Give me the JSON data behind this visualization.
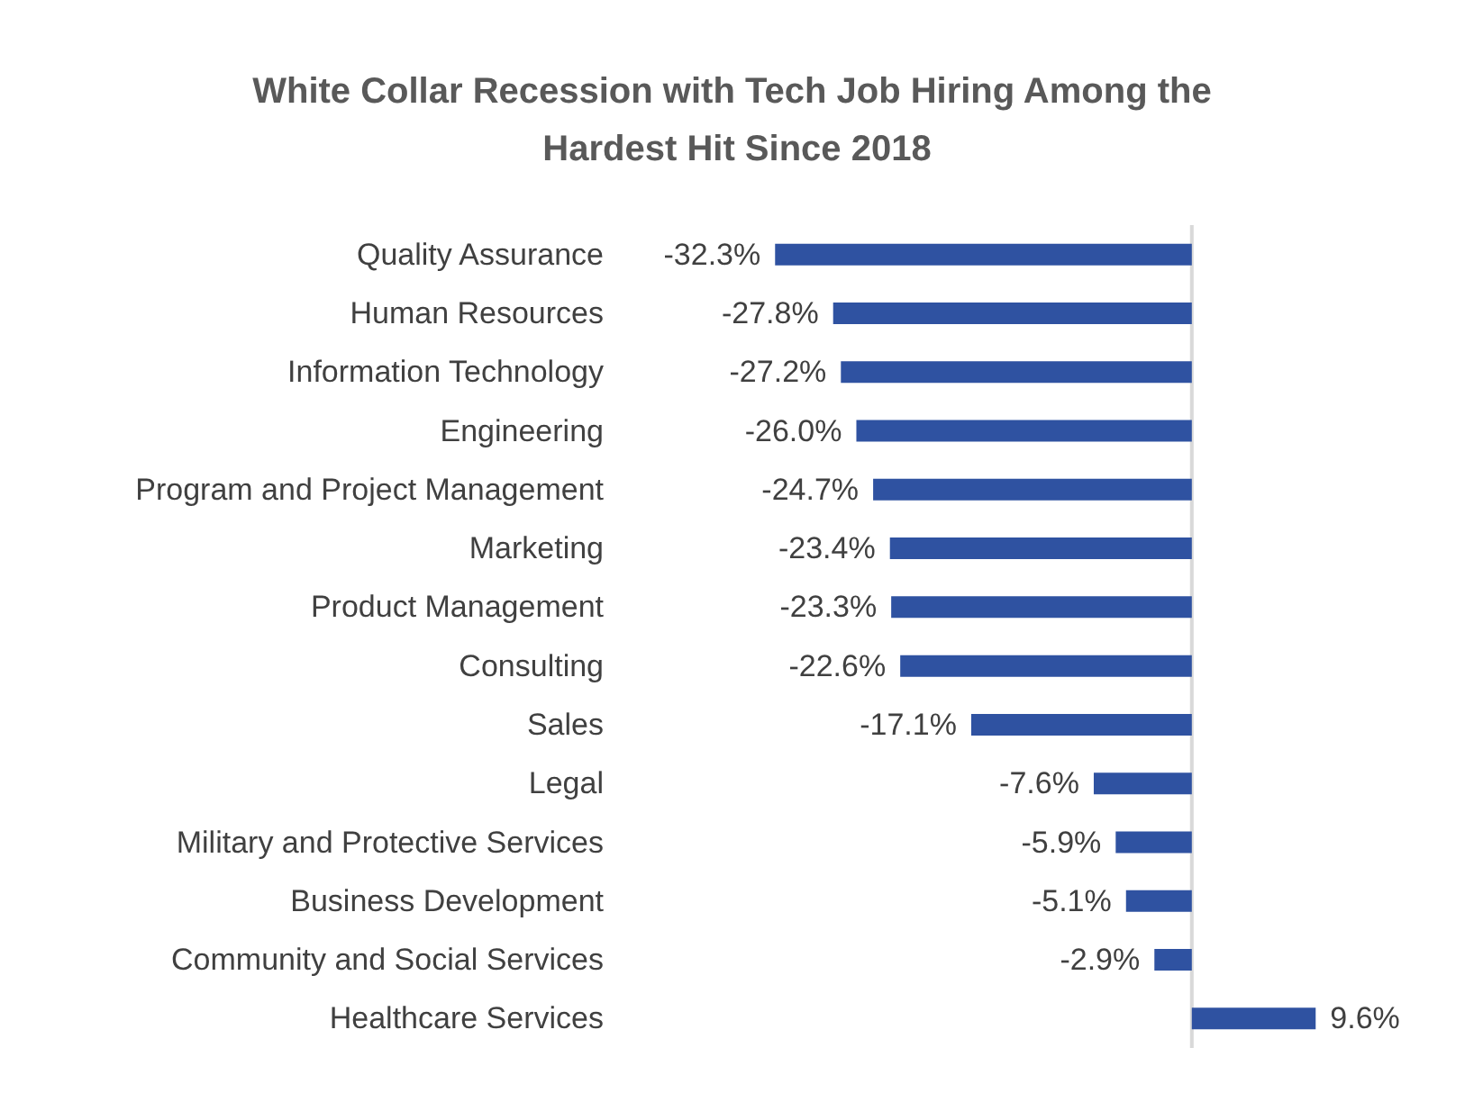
{
  "chart_data": {
    "type": "bar",
    "orientation": "horizontal",
    "title": "White Collar Recession with Tech Job Hiring Among the Hardest Hit Since 2018",
    "categories": [
      "Quality Assurance",
      "Human Resources",
      "Information Technology",
      "Engineering",
      "Program and Project Management",
      "Marketing",
      "Product Management",
      "Consulting",
      "Sales",
      "Legal",
      "Military and Protective Services",
      "Business Development",
      "Community and Social Services",
      "Healthcare Services"
    ],
    "values": [
      -32.3,
      -27.8,
      -27.2,
      -26.0,
      -24.7,
      -23.4,
      -23.3,
      -22.6,
      -17.1,
      -7.6,
      -5.9,
      -5.1,
      -2.9,
      9.6
    ],
    "value_labels": [
      "-32.3%",
      "-27.8%",
      "-27.2%",
      "-26.0%",
      "-24.7%",
      "-23.4%",
      "-23.3%",
      "-22.6%",
      "-17.1%",
      "-7.6%",
      "-5.9%",
      "-5.1%",
      "-2.9%",
      "9.6%"
    ],
    "color": "#2f52a1",
    "tick_labels": "y"
  }
}
